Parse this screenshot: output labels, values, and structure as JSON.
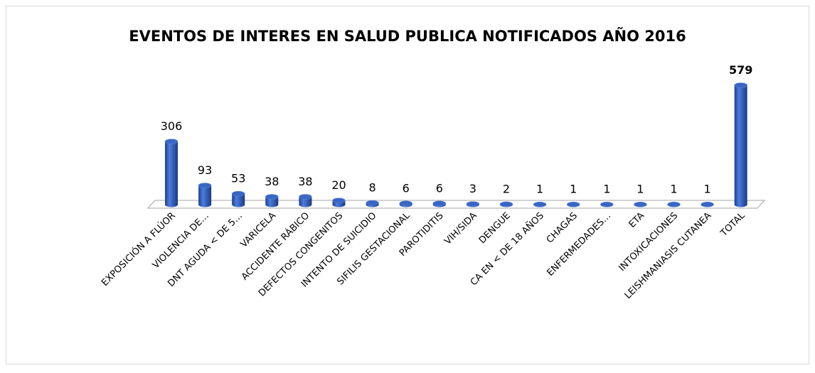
{
  "chart_data": {
    "type": "bar",
    "title": "EVENTOS DE INTERES EN SALUD PUBLICA NOTIFICADOS AÑO 2016",
    "categories": [
      "EXPOSICIÓN A FLÚOR",
      "VIOLENCIA DE…",
      "DNT AGUDA < DE 5…",
      "VARICELA",
      "ACCIDENTE RÁBICO",
      "DEFECTOS CONGENITOS",
      "INTENTO DE SUICIDIO",
      "SIFILIS GESTACIONAL",
      "PAROTIDITIS",
      "VIH/SIDA",
      "DENGUE",
      "CA EN < DE 18 AÑOS",
      "CHAGAS",
      "ENFERMEDADES…",
      "ETA",
      "INTOXICACIONES",
      "LEISHMANIASIS CUTANEA",
      "TOTAL"
    ],
    "values": [
      306,
      93,
      53,
      38,
      38,
      20,
      8,
      6,
      6,
      3,
      2,
      1,
      1,
      1,
      1,
      1,
      1,
      579
    ],
    "color": "#3a66c4"
  }
}
